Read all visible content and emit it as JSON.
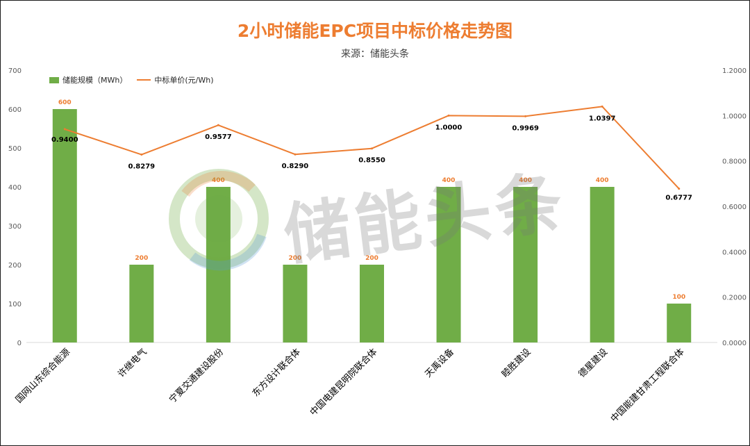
{
  "title": "2小时储能EPC项目中标价格走势图",
  "subtitle": "来源：储能头条",
  "watermark": "储能头条",
  "legend": {
    "bar_label": "储能规模（MWh）",
    "line_label": "中标单价(元/Wh)"
  },
  "colors": {
    "bar": "#70AD47",
    "line": "#ED7D31",
    "title": "#ED7D31",
    "bar_label": "#ED7D31",
    "line_label": "#000000"
  },
  "chart_data": {
    "type": "bar",
    "categories": [
      "国网山东综合能源",
      "许继电气",
      "宁夏交通建设股份",
      "东方设计联合体",
      "中国电建昆明院联合体",
      "天禹设备",
      "睦胜建设",
      "德星建设",
      "中国能建甘肃工程联合体"
    ],
    "series": [
      {
        "name": "储能规模（MWh）",
        "type": "bar",
        "axis": "left",
        "values": [
          600,
          200,
          400,
          200,
          200,
          400,
          400,
          400,
          100
        ],
        "labels": [
          "600",
          "200",
          "400",
          "200",
          "200",
          "400",
          "400",
          "400",
          "100"
        ]
      },
      {
        "name": "中标单价(元/Wh)",
        "type": "line",
        "axis": "right",
        "values": [
          0.94,
          0.8279,
          0.9577,
          0.829,
          0.855,
          1.0,
          0.9969,
          1.0397,
          0.6777
        ],
        "labels": [
          "0.9400",
          "0.8279",
          "0.9577",
          "0.8290",
          "0.8550",
          "1.0000",
          "0.9969",
          "1.0397",
          "0.6777"
        ]
      }
    ],
    "y_left": {
      "ylim": [
        0,
        700
      ],
      "ticks": [
        "0",
        "100",
        "200",
        "300",
        "400",
        "500",
        "600",
        "700"
      ]
    },
    "y_right": {
      "ylim": [
        0,
        1.2
      ],
      "ticks": [
        "0.0000",
        "0.2000",
        "0.4000",
        "0.6000",
        "0.8000",
        "1.0000",
        "1.2000"
      ]
    },
    "grid": false,
    "legend_position": "top-left"
  }
}
